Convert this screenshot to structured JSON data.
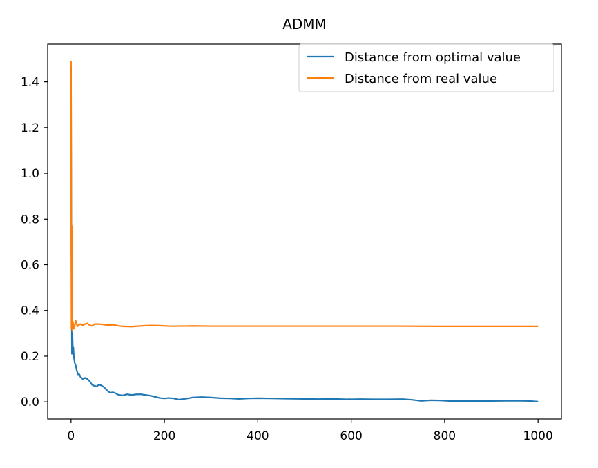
{
  "chart_data": {
    "type": "line",
    "title": "ADMM",
    "xlabel": "",
    "ylabel": "",
    "xlim": [
      -50,
      1050
    ],
    "ylim": [
      -0.075,
      1.565
    ],
    "xticks": [
      0,
      200,
      400,
      600,
      800,
      1000
    ],
    "yticks": [
      0.0,
      0.2,
      0.4,
      0.6,
      0.8,
      1.0,
      1.2,
      1.4
    ],
    "grid": false,
    "legend_position": "top-right",
    "series": [
      {
        "name": "Distance from optimal value",
        "color": "#1f77b4",
        "points": [
          [
            0,
            1.47
          ],
          [
            1,
            0.55
          ],
          [
            2,
            0.21
          ],
          [
            3,
            0.3
          ],
          [
            4,
            0.22
          ],
          [
            5,
            0.24
          ],
          [
            6,
            0.2
          ],
          [
            8,
            0.17
          ],
          [
            10,
            0.16
          ],
          [
            12,
            0.14
          ],
          [
            15,
            0.12
          ],
          [
            18,
            0.12
          ],
          [
            20,
            0.11
          ],
          [
            25,
            0.1
          ],
          [
            30,
            0.105
          ],
          [
            35,
            0.1
          ],
          [
            40,
            0.09
          ],
          [
            45,
            0.075
          ],
          [
            50,
            0.07
          ],
          [
            55,
            0.068
          ],
          [
            60,
            0.075
          ],
          [
            65,
            0.072
          ],
          [
            70,
            0.065
          ],
          [
            75,
            0.055
          ],
          [
            80,
            0.045
          ],
          [
            85,
            0.04
          ],
          [
            90,
            0.042
          ],
          [
            95,
            0.038
          ],
          [
            100,
            0.032
          ],
          [
            110,
            0.028
          ],
          [
            120,
            0.033
          ],
          [
            130,
            0.03
          ],
          [
            140,
            0.033
          ],
          [
            150,
            0.033
          ],
          [
            160,
            0.03
          ],
          [
            170,
            0.027
          ],
          [
            180,
            0.022
          ],
          [
            190,
            0.017
          ],
          [
            200,
            0.015
          ],
          [
            210,
            0.017
          ],
          [
            220,
            0.015
          ],
          [
            230,
            0.01
          ],
          [
            240,
            0.012
          ],
          [
            250,
            0.015
          ],
          [
            260,
            0.019
          ],
          [
            280,
            0.021
          ],
          [
            300,
            0.019
          ],
          [
            320,
            0.016
          ],
          [
            340,
            0.015
          ],
          [
            360,
            0.013
          ],
          [
            380,
            0.015
          ],
          [
            400,
            0.016
          ],
          [
            430,
            0.015
          ],
          [
            460,
            0.014
          ],
          [
            500,
            0.013
          ],
          [
            530,
            0.012
          ],
          [
            560,
            0.013
          ],
          [
            590,
            0.011
          ],
          [
            620,
            0.012
          ],
          [
            650,
            0.011
          ],
          [
            680,
            0.011
          ],
          [
            710,
            0.012
          ],
          [
            730,
            0.009
          ],
          [
            750,
            0.004
          ],
          [
            770,
            0.007
          ],
          [
            790,
            0.006
          ],
          [
            810,
            0.004
          ],
          [
            850,
            0.004
          ],
          [
            900,
            0.004
          ],
          [
            950,
            0.005
          ],
          [
            980,
            0.004
          ],
          [
            1000,
            0.001
          ]
        ]
      },
      {
        "name": "Distance from real value",
        "color": "#ff7f0e",
        "points": [
          [
            0,
            1.49
          ],
          [
            1,
            0.32
          ],
          [
            2,
            0.77
          ],
          [
            3,
            0.31
          ],
          [
            4,
            0.35
          ],
          [
            6,
            0.32
          ],
          [
            8,
            0.335
          ],
          [
            10,
            0.355
          ],
          [
            12,
            0.34
          ],
          [
            14,
            0.33
          ],
          [
            16,
            0.335
          ],
          [
            20,
            0.34
          ],
          [
            25,
            0.335
          ],
          [
            30,
            0.34
          ],
          [
            35,
            0.343
          ],
          [
            40,
            0.335
          ],
          [
            45,
            0.332
          ],
          [
            50,
            0.34
          ],
          [
            60,
            0.34
          ],
          [
            70,
            0.338
          ],
          [
            80,
            0.335
          ],
          [
            90,
            0.337
          ],
          [
            100,
            0.333
          ],
          [
            110,
            0.33
          ],
          [
            130,
            0.329
          ],
          [
            150,
            0.332
          ],
          [
            170,
            0.334
          ],
          [
            190,
            0.333
          ],
          [
            210,
            0.331
          ],
          [
            230,
            0.331
          ],
          [
            260,
            0.332
          ],
          [
            300,
            0.331
          ],
          [
            350,
            0.331
          ],
          [
            400,
            0.331
          ],
          [
            500,
            0.331
          ],
          [
            600,
            0.331
          ],
          [
            700,
            0.331
          ],
          [
            800,
            0.33
          ],
          [
            900,
            0.33
          ],
          [
            1000,
            0.33
          ]
        ]
      }
    ]
  }
}
